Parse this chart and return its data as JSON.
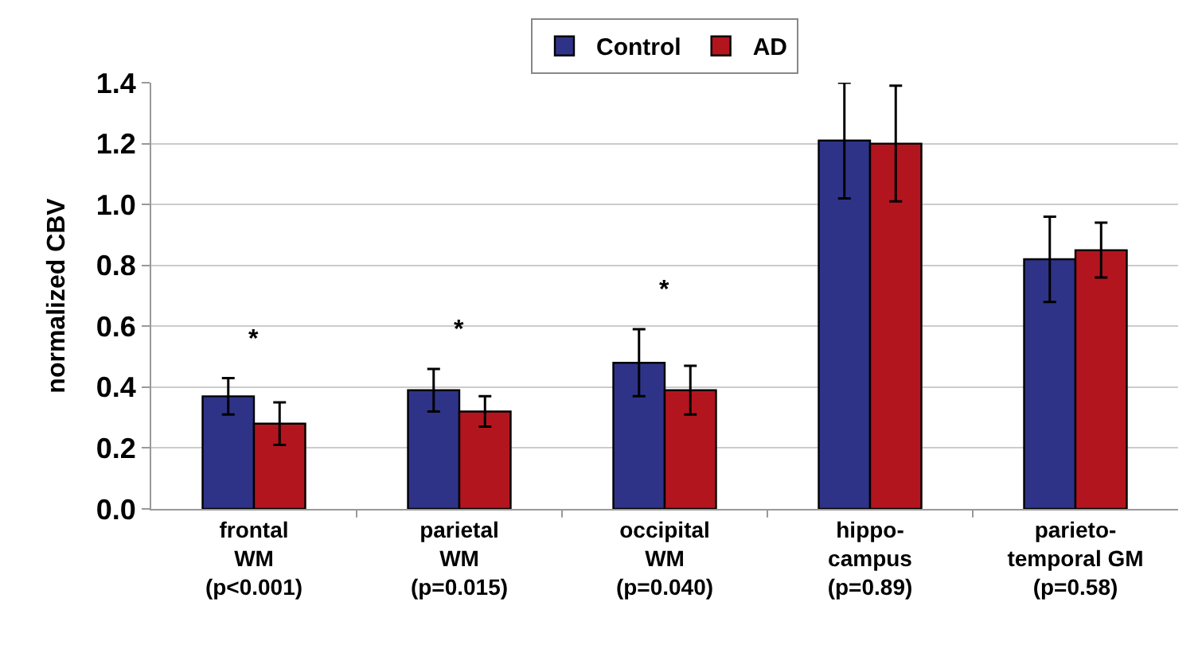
{
  "chart_data": {
    "type": "bar",
    "ylabel": "normalized CBV",
    "categories": [
      "frontal\nWM\n(p<0.001)",
      "parietal\nWM\n(p=0.015)",
      "occipital\nWM\n(p=0.040)",
      "hippo-\ncampus\n(p=0.89)",
      "parieto-\ntemporal GM\n(p=0.58)"
    ],
    "series": [
      {
        "name": "Control",
        "color": "#2e3388",
        "values": [
          0.37,
          0.39,
          0.48,
          1.21,
          0.82
        ],
        "errors": [
          0.06,
          0.07,
          0.11,
          0.19,
          0.14
        ]
      },
      {
        "name": "AD",
        "color": "#b3151f",
        "values": [
          0.28,
          0.32,
          0.39,
          1.2,
          0.85
        ],
        "errors": [
          0.07,
          0.05,
          0.08,
          0.19,
          0.09
        ]
      }
    ],
    "ylim": [
      0,
      1.4
    ],
    "yticks": [
      {
        "value": 0,
        "label": "0.0"
      },
      0.2,
      0.4,
      0.6,
      0.8,
      {
        "value": 1,
        "label": "1.0"
      },
      1.2,
      1.4
    ],
    "annotations": [
      "*",
      "*",
      "*"
    ],
    "grid": "y",
    "legend": "top"
  }
}
